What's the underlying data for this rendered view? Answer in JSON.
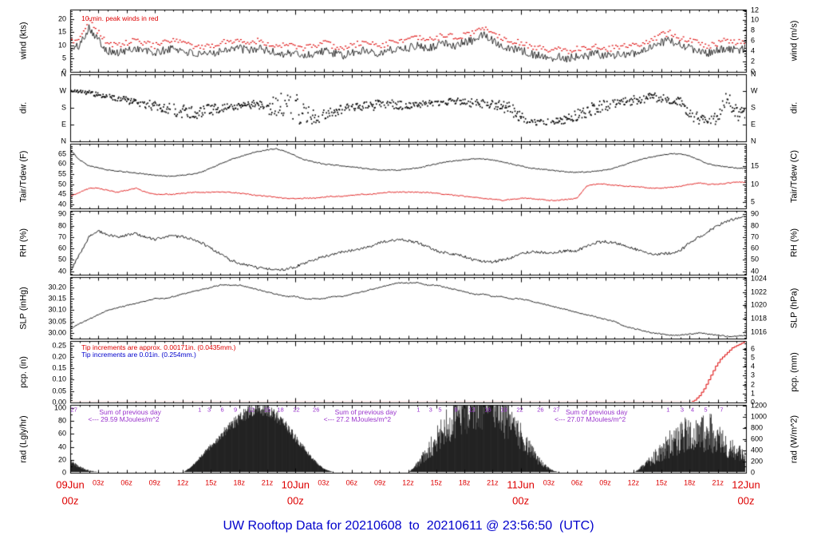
{
  "title": "UW Rooftop Data for 20210608  to  20210611 @ 23:56:50  (UTC)",
  "colors": {
    "black": "#000000",
    "red": "#dd0000",
    "blue": "#0000cc",
    "purple": "#9933cc",
    "bg": "#ffffff"
  },
  "x_axis": {
    "hours_total": 72,
    "day_ticks": [
      {
        "h": 0,
        "label": "09Jun",
        "sub": "00z"
      },
      {
        "h": 24,
        "label": "10Jun",
        "sub": "00z"
      },
      {
        "h": 48,
        "label": "11Jun",
        "sub": "00z"
      },
      {
        "h": 72,
        "label": "12Jun",
        "sub": "00z"
      }
    ],
    "hour_tick_labels": [
      "03z",
      "06z",
      "09z",
      "12z",
      "15z",
      "18z",
      "21z"
    ],
    "hour_tick_step": 3
  },
  "chart_data": [
    {
      "id": "wind",
      "type": "line-noisy",
      "label_left": "wind (kts)",
      "label_right": "wind (m/s)",
      "ylim": [
        0,
        23.5
      ],
      "minor_step": 1,
      "noise": 1.6,
      "left_ticks": [
        [
          0,
          "0"
        ],
        [
          5,
          "5"
        ],
        [
          10,
          "10"
        ],
        [
          15,
          "15"
        ],
        [
          20,
          "20"
        ]
      ],
      "right_ticks": [
        [
          0,
          "0"
        ],
        [
          3.889,
          "2"
        ],
        [
          7.778,
          "4"
        ],
        [
          11.667,
          "6"
        ],
        [
          15.556,
          "8"
        ],
        [
          19.444,
          "10"
        ],
        [
          23.333,
          "12"
        ]
      ],
      "series": {
        "wind_avg_kts": [
          8,
          10,
          17,
          12,
          8,
          7,
          8,
          9,
          8,
          7,
          8,
          9,
          8,
          7,
          6,
          7,
          8,
          9,
          9,
          8,
          9,
          8,
          7,
          7,
          7,
          6,
          7,
          8,
          7,
          6,
          7,
          8,
          8,
          7,
          8,
          9,
          9,
          10,
          9,
          10,
          11,
          10,
          11,
          12,
          14,
          12,
          10,
          9,
          8,
          7,
          6,
          5,
          6,
          5,
          6,
          6,
          7,
          6,
          6,
          7,
          7,
          8,
          9,
          11,
          12,
          10,
          9,
          8,
          7,
          8,
          9,
          8,
          9
        ],
        "peak_offset_kts": 2.2
      },
      "annotations": [
        {
          "text": "10.min. peak winds in red",
          "color": "#dd0000",
          "h": 1.2,
          "dy": 11
        }
      ]
    },
    {
      "id": "dir",
      "type": "scatter-direction",
      "label_left": "dir.",
      "label_right": "dir.",
      "ylim": [
        0,
        360
      ],
      "minor_step": null,
      "left_ticks": [
        [
          360,
          "N"
        ],
        [
          270,
          "W"
        ],
        [
          180,
          "S"
        ],
        [
          90,
          "E"
        ],
        [
          0,
          "N"
        ]
      ],
      "right_ticks": [
        [
          360,
          "N"
        ],
        [
          270,
          "W"
        ],
        [
          180,
          "S"
        ],
        [
          90,
          "E"
        ],
        [
          0,
          "N"
        ]
      ],
      "series": {
        "dir_mean_deg": [
          270,
          265,
          260,
          250,
          240,
          230,
          220,
          210,
          200,
          190,
          180,
          170,
          160,
          150,
          160,
          170,
          180,
          185,
          190,
          195,
          200,
          190,
          180,
          180,
          180,
          150,
          130,
          140,
          160,
          170,
          180,
          185,
          190,
          195,
          200,
          195,
          190,
          195,
          200,
          205,
          210,
          215,
          210,
          205,
          200,
          195,
          190,
          170,
          130,
          110,
          100,
          105,
          110,
          120,
          140,
          160,
          180,
          190,
          200,
          210,
          220,
          230,
          240,
          230,
          220,
          210,
          150,
          120,
          110,
          130,
          240,
          150,
          140
        ],
        "dir_spread_deg": [
          15,
          15,
          20,
          20,
          25,
          30,
          30,
          30,
          40,
          40,
          50,
          50,
          60,
          60,
          50,
          50,
          40,
          30,
          30,
          30,
          40,
          60,
          120,
          150,
          150,
          100,
          60,
          50,
          50,
          40,
          40,
          40,
          50,
          50,
          40,
          40,
          30,
          30,
          30,
          30,
          30,
          30,
          30,
          40,
          40,
          40,
          50,
          60,
          40,
          30,
          25,
          25,
          30,
          40,
          50,
          60,
          60,
          50,
          50,
          40,
          40,
          40,
          40,
          40,
          40,
          40,
          60,
          50,
          40,
          60,
          60,
          80,
          60
        ]
      },
      "annotations": []
    },
    {
      "id": "tair_tdew",
      "type": "line",
      "label_left": "Tair/Tdew (F)",
      "label_right": "Tair/Tdew (C)",
      "ylim": [
        38,
        70
      ],
      "minor_step": 1,
      "noise": 0.25,
      "left_ticks": [
        [
          65,
          "65"
        ],
        [
          60,
          "60"
        ],
        [
          55,
          "55"
        ],
        [
          50,
          "50"
        ],
        [
          45,
          "45"
        ],
        [
          40,
          "40"
        ]
      ],
      "right_ticks": [
        [
          59,
          "15"
        ],
        [
          50,
          "10"
        ],
        [
          41,
          "5"
        ]
      ],
      "series": {
        "tair_f": [
          67,
          62,
          59,
          58,
          57,
          56.5,
          56,
          55.5,
          55,
          54.5,
          54,
          54,
          54.5,
          55,
          56,
          58,
          60,
          62,
          63.5,
          65,
          66,
          67,
          67.5,
          66,
          64,
          62,
          61,
          60,
          59.5,
          59,
          58.5,
          58,
          57.5,
          57,
          57,
          57,
          57.5,
          58,
          59,
          60,
          61,
          61.5,
          62,
          62.5,
          62.5,
          62,
          61,
          60,
          59,
          58,
          57.5,
          57,
          56.5,
          56,
          56,
          56,
          56.5,
          57,
          58,
          59.5,
          61,
          62.5,
          63.5,
          64.5,
          65,
          65,
          64,
          62,
          60,
          59,
          58.5,
          58,
          58
        ],
        "tdew_f": [
          44,
          46,
          48,
          48,
          47,
          46,
          47,
          48,
          46,
          45,
          45,
          45,
          45.5,
          46,
          46,
          46,
          46,
          46,
          45.5,
          45,
          44.5,
          44,
          43.5,
          43,
          43,
          43,
          43,
          43.5,
          44,
          44,
          44.5,
          45,
          45,
          45.5,
          46,
          46,
          46,
          46,
          46,
          45.5,
          45,
          44.5,
          44,
          43.5,
          43,
          42.5,
          42,
          42.5,
          43,
          43,
          42.5,
          42,
          42,
          42.5,
          43,
          49,
          50,
          50,
          49.5,
          49,
          49,
          48.5,
          48,
          48,
          48.5,
          49,
          50,
          50.5,
          50,
          50,
          50.5,
          51,
          51
        ]
      },
      "annotations": []
    },
    {
      "id": "rh",
      "type": "line",
      "label_left": "RH (%)",
      "label_right": "RH (%)",
      "ylim": [
        37,
        93
      ],
      "minor_step": 2,
      "noise": 1.2,
      "left_ticks": [
        [
          90,
          "90"
        ],
        [
          80,
          "80"
        ],
        [
          70,
          "70"
        ],
        [
          60,
          "60"
        ],
        [
          50,
          "50"
        ],
        [
          40,
          "40"
        ]
      ],
      "right_ticks": [
        [
          90,
          "90"
        ],
        [
          80,
          "80"
        ],
        [
          70,
          "70"
        ],
        [
          60,
          "60"
        ],
        [
          50,
          "50"
        ],
        [
          40,
          "40"
        ]
      ],
      "series": {
        "rh_pct": [
          40,
          55,
          70,
          75,
          72,
          70,
          72,
          73,
          70,
          68,
          70,
          71,
          70,
          68,
          65,
          60,
          55,
          50,
          47,
          45,
          43,
          42,
          41,
          42,
          44,
          47,
          50,
          53,
          55,
          57,
          58,
          60,
          62,
          65,
          67,
          68,
          67,
          65,
          62,
          58,
          56,
          55,
          53,
          50,
          49,
          48,
          50,
          52,
          55,
          57,
          57,
          56,
          57,
          58,
          58,
          62,
          65,
          66,
          65,
          63,
          60,
          57,
          55,
          55,
          56,
          58,
          65,
          70,
          75,
          80,
          84,
          86,
          88
        ]
      },
      "annotations": []
    },
    {
      "id": "slp",
      "type": "line",
      "label_left": "SLP (inHg)",
      "label_right": "SLP (hPa)",
      "ylim": [
        29.975,
        30.245
      ],
      "minor_step": 0.01,
      "noise": 0.0025,
      "left_ticks": [
        [
          30.2,
          "30.20"
        ],
        [
          30.15,
          "30.15"
        ],
        [
          30.1,
          "30.10"
        ],
        [
          30.05,
          "30.05"
        ],
        [
          30.0,
          "30.00"
        ]
      ],
      "right_ticks": [
        [
          30.2389,
          "1024"
        ],
        [
          30.1798,
          "1022"
        ],
        [
          30.1208,
          "1020"
        ],
        [
          30.0617,
          "1018"
        ],
        [
          30.0027,
          "1016"
        ]
      ],
      "series": {
        "slp_inhg": [
          30.02,
          30.04,
          30.06,
          30.08,
          30.1,
          30.11,
          30.12,
          30.13,
          30.14,
          30.15,
          30.15,
          30.16,
          30.17,
          30.18,
          30.19,
          30.2,
          30.21,
          30.21,
          30.21,
          30.2,
          30.19,
          30.18,
          30.17,
          30.16,
          30.16,
          30.15,
          30.15,
          30.15,
          30.16,
          30.16,
          30.17,
          30.18,
          30.19,
          30.2,
          30.21,
          30.22,
          30.22,
          30.22,
          30.21,
          30.21,
          30.2,
          30.19,
          30.18,
          30.17,
          30.17,
          30.16,
          30.16,
          30.15,
          30.15,
          30.14,
          30.13,
          30.12,
          30.11,
          30.1,
          30.09,
          30.08,
          30.07,
          30.06,
          30.05,
          30.03,
          30.02,
          30.01,
          30.0,
          29.995,
          29.99,
          29.99,
          29.995,
          30.0,
          29.995,
          29.99,
          29.985,
          29.985,
          29.99
        ]
      },
      "annotations": []
    },
    {
      "id": "pcp",
      "type": "step",
      "label_left": "pcp. (in)",
      "label_right": "pcp. (mm)",
      "ylim": [
        0,
        0.27
      ],
      "minor_step": 0.01,
      "left_ticks": [
        [
          0.25,
          "0.25"
        ],
        [
          0.2,
          "0.20"
        ],
        [
          0.15,
          "0.15"
        ],
        [
          0.1,
          "0.10"
        ],
        [
          0.05,
          "0.05"
        ],
        [
          0,
          "0.00"
        ]
      ],
      "right_ticks": [
        [
          0.2362,
          "6"
        ],
        [
          0.1969,
          "5"
        ],
        [
          0.1575,
          "4"
        ],
        [
          0.1181,
          "3"
        ],
        [
          0.0787,
          "2"
        ],
        [
          0.0394,
          "1"
        ],
        [
          0,
          "0"
        ]
      ],
      "series": {
        "precip_cum_in": {
          "start_h": 66,
          "step_h": 0.25,
          "values": [
            0,
            0.005,
            0.01,
            0.02,
            0.03,
            0.045,
            0.06,
            0.08,
            0.1,
            0.12,
            0.14,
            0.16,
            0.175,
            0.19,
            0.2,
            0.21,
            0.22,
            0.23,
            0.24,
            0.245,
            0.25,
            0.255,
            0.26,
            0.265,
            0.27
          ]
        }
      },
      "annotations": [
        {
          "text": "Tip increments are approx. 0.00171in. (0.0435mm.)",
          "color": "#dd0000",
          "h": 1.2,
          "dy": 8
        },
        {
          "text": "Tip increments are 0.01in. (0.254mm.)",
          "color": "#0000cc",
          "h": 1.2,
          "dy": 17
        }
      ]
    },
    {
      "id": "rad",
      "type": "solar-area",
      "label_left": "rad (Lgly/hr)",
      "label_right": "rad (W/m^2)",
      "ylim": [
        0,
        105
      ],
      "minor_step": 10,
      "left_ticks": [
        [
          100,
          "100"
        ],
        [
          80,
          "80"
        ],
        [
          60,
          "60"
        ],
        [
          40,
          "40"
        ],
        [
          20,
          "20"
        ],
        [
          0,
          "0"
        ]
      ],
      "right_ticks": [
        [
          103.18,
          "1200"
        ],
        [
          85.99,
          "1000"
        ],
        [
          68.79,
          "800"
        ],
        [
          51.59,
          "600"
        ],
        [
          34.39,
          "400"
        ],
        [
          17.2,
          "200"
        ],
        [
          0,
          "0"
        ]
      ],
      "series": {
        "rad_lyhr": [
          15,
          8,
          3,
          1,
          0,
          0,
          0,
          0,
          0,
          0,
          0,
          0,
          0,
          10,
          25,
          40,
          55,
          70,
          82,
          92,
          97,
          95,
          85,
          70,
          52,
          35,
          18,
          6,
          1,
          0,
          0,
          0,
          0,
          0,
          0,
          0,
          0,
          12,
          28,
          45,
          62,
          75,
          88,
          96,
          99,
          94,
          84,
          68,
          50,
          32,
          16,
          5,
          1,
          0,
          0,
          0,
          0,
          0,
          0,
          0,
          0,
          8,
          18,
          30,
          40,
          48,
          55,
          50,
          58,
          45,
          35,
          28,
          20
        ],
        "cloud_jitter": [
          0.3,
          0.3,
          0.3,
          0.3,
          0,
          0,
          0,
          0,
          0,
          0,
          0,
          0,
          0,
          0.12,
          0.12,
          0.12,
          0.12,
          0.12,
          0.12,
          0.12,
          0.12,
          0.12,
          0.12,
          0.12,
          0.12,
          0.12,
          0.12,
          0.12,
          0,
          0,
          0,
          0,
          0,
          0,
          0,
          0,
          0,
          0.45,
          0.45,
          0.45,
          0.45,
          0.45,
          0.45,
          0.45,
          0.45,
          0.45,
          0.45,
          0.45,
          0.45,
          0.45,
          0.45,
          0.45,
          0,
          0,
          0,
          0,
          0,
          0,
          0,
          0,
          0,
          0.55,
          0.55,
          0.55,
          0.55,
          0.55,
          0.55,
          0.55,
          0.55,
          0.55,
          0.55,
          0.55,
          0.55
        ]
      },
      "daily_sums": [
        {
          "h": 1.9,
          "line1": "Sum of previous day",
          "line2": "<--- 29.59 MJoules/m^2"
        },
        {
          "h": 27.0,
          "line1": "Sum of previous day",
          "line2": "<--- 27.2 MJoules/m^2"
        },
        {
          "h": 51.6,
          "line1": "Sum of previous day",
          "line2": "<--- 27.07 MJoules/m^2"
        }
      ],
      "mj_marks": [
        [
          0.4,
          "27"
        ],
        [
          13.8,
          "1"
        ],
        [
          14.8,
          "3"
        ],
        [
          16.2,
          "6"
        ],
        [
          17.6,
          "9"
        ],
        [
          19.3,
          "12"
        ],
        [
          21,
          "15"
        ],
        [
          22.4,
          "18"
        ],
        [
          24.1,
          "22"
        ],
        [
          26.2,
          "26"
        ],
        [
          37.1,
          "1"
        ],
        [
          38.4,
          "3"
        ],
        [
          39.4,
          "5"
        ],
        [
          41.1,
          "9"
        ],
        [
          42.8,
          "12"
        ],
        [
          44.5,
          "16"
        ],
        [
          46.2,
          "19"
        ],
        [
          47.9,
          "22"
        ],
        [
          50.1,
          "26"
        ],
        [
          51.8,
          "27"
        ],
        [
          63.7,
          "1"
        ],
        [
          65.2,
          "3"
        ],
        [
          66.3,
          "4"
        ],
        [
          67.7,
          "5"
        ],
        [
          69.4,
          "7"
        ]
      ],
      "annotations": []
    }
  ]
}
